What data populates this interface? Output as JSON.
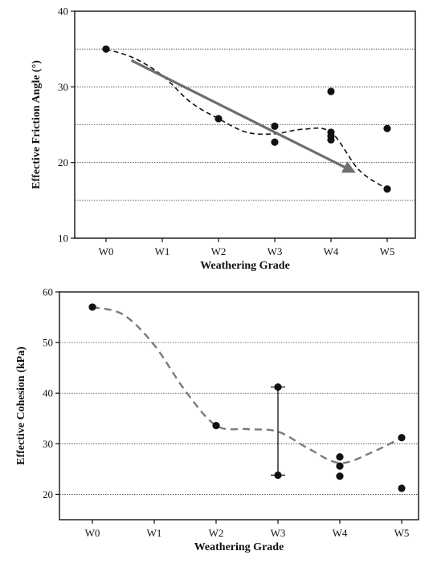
{
  "chart_data": [
    {
      "type": "scatter",
      "title": "",
      "xlabel": "Weathering Grade",
      "ylabel": "Effective Friction Angle (°)",
      "categories": [
        "W0",
        "W1",
        "W2",
        "W3",
        "W4",
        "W5"
      ],
      "ylim": [
        10,
        40
      ],
      "yticks": [
        10,
        20,
        30,
        40
      ],
      "grid_y": [
        15,
        20,
        25,
        30,
        35
      ],
      "points": [
        {
          "x": "W0",
          "y": 35
        },
        {
          "x": "W2",
          "y": 25.8
        },
        {
          "x": "W3",
          "y": 24.8
        },
        {
          "x": "W3",
          "y": 22.7
        },
        {
          "x": "W4",
          "y": 29.4
        },
        {
          "x": "W4",
          "y": 24.0
        },
        {
          "x": "W4",
          "y": 23.5
        },
        {
          "x": "W4",
          "y": 23.0
        },
        {
          "x": "W5",
          "y": 24.5
        },
        {
          "x": "W5",
          "y": 16.5
        }
      ],
      "trend_curve": {
        "style": "dashed",
        "color": "#111111",
        "points": [
          [
            0,
            35
          ],
          [
            0.5,
            33.8
          ],
          [
            1,
            31.5
          ],
          [
            1.5,
            28.0
          ],
          [
            2,
            25.8
          ],
          [
            2.5,
            24.0
          ],
          [
            3,
            23.8
          ],
          [
            3.5,
            24.4
          ],
          [
            4,
            24.0
          ],
          [
            4.5,
            19.0
          ],
          [
            5,
            16.5
          ]
        ]
      },
      "trend_arrow": {
        "color": "#6e6e6e",
        "from": [
          0.45,
          33.5
        ],
        "to": [
          4.4,
          18.8
        ]
      }
    },
    {
      "type": "scatter",
      "title": "",
      "xlabel": "Weathering Grade",
      "ylabel": "Effective Cohesion (kPa)",
      "categories": [
        "W0",
        "W1",
        "W2",
        "W3",
        "W4",
        "W5"
      ],
      "ylim": [
        15,
        60
      ],
      "yticks": [
        20,
        30,
        40,
        50,
        60
      ],
      "grid_y": [
        20,
        30,
        40,
        50
      ],
      "points": [
        {
          "x": "W0",
          "y": 57
        },
        {
          "x": "W2",
          "y": 33.6
        },
        {
          "x": "W3",
          "y": 41.2
        },
        {
          "x": "W3",
          "y": 23.8
        },
        {
          "x": "W4",
          "y": 27.4
        },
        {
          "x": "W4",
          "y": 25.6
        },
        {
          "x": "W4",
          "y": 23.6
        },
        {
          "x": "W5",
          "y": 31.2
        },
        {
          "x": "W5",
          "y": 21.2
        }
      ],
      "range_bar": {
        "x": "W3",
        "low": 23.8,
        "high": 41.2
      },
      "trend_curve": {
        "style": "dashed",
        "color": "#7a7a7a",
        "points": [
          [
            0,
            57
          ],
          [
            0.5,
            55.5
          ],
          [
            1,
            49.5
          ],
          [
            1.5,
            40.5
          ],
          [
            2,
            33.6
          ],
          [
            2.5,
            32.9
          ],
          [
            3,
            32.4
          ],
          [
            3.5,
            29.0
          ],
          [
            4,
            26.2
          ],
          [
            4.5,
            28.2
          ],
          [
            5,
            31.2
          ]
        ]
      }
    }
  ]
}
